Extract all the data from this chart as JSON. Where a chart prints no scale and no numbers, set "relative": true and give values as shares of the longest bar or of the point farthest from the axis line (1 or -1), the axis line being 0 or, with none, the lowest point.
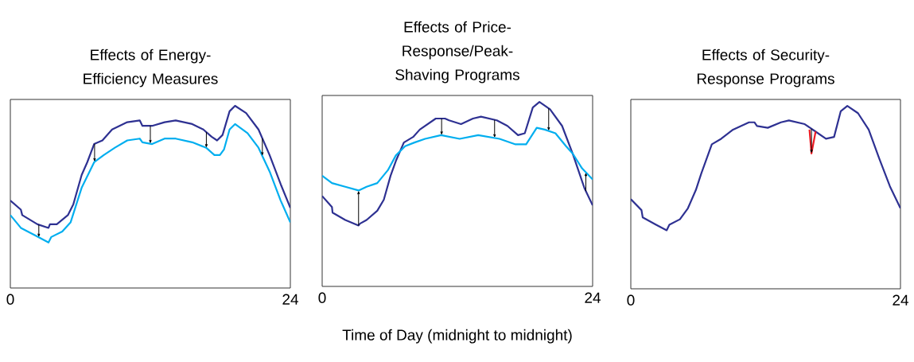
{
  "chart_data": [
    {
      "type": "line",
      "title": "Effects of Energy-Efficiency Measures",
      "relative": true,
      "xlim": [
        0,
        24
      ],
      "xticks": [
        0,
        24
      ],
      "series": [
        {
          "color": "#2e3192",
          "x": [
            0,
            0.9,
            1.02,
            2.32,
            3.27,
            3.39,
            3.98,
            4.93,
            5.4,
            6.11,
            6.59,
            7.18,
            7.89,
            8.72,
            10.02,
            11.09,
            11.32,
            12.15,
            13.22,
            14.17,
            15.59,
            16.54,
            17.25,
            17.72,
            18.19,
            18.79,
            19.26,
            20.21,
            21.27,
            22.22,
            23.17,
            24
          ],
          "values": [
            0.48,
            0.43,
            0.4,
            0.35,
            0.33,
            0.35,
            0.35,
            0.4,
            0.46,
            0.62,
            0.69,
            0.79,
            0.81,
            0.87,
            0.91,
            0.92,
            0.89,
            0.89,
            0.91,
            0.92,
            0.9,
            0.87,
            0.83,
            0.81,
            0.84,
            0.97,
            1.0,
            0.96,
            0.87,
            0.73,
            0.57,
            0.44
          ]
        },
        {
          "color": "#00aeef",
          "x": [
            0,
            0.9,
            2.08,
            3.27,
            3.51,
            4.45,
            5.16,
            6.11,
            7.18,
            8.01,
            8.96,
            10.02,
            11.09,
            11.32,
            12.15,
            13.22,
            14.17,
            15.59,
            16.78,
            17.49,
            17.96,
            18.31,
            18.79,
            19.26,
            20.33,
            21.27,
            22.22,
            23.17,
            24
          ],
          "values": [
            0.4,
            0.33,
            0.29,
            0.25,
            0.28,
            0.31,
            0.36,
            0.55,
            0.69,
            0.73,
            0.77,
            0.81,
            0.82,
            0.8,
            0.79,
            0.82,
            0.82,
            0.8,
            0.77,
            0.73,
            0.73,
            0.76,
            0.87,
            0.9,
            0.85,
            0.77,
            0.64,
            0.48,
            0.36
          ]
        }
      ]
    },
    {
      "type": "line",
      "title": "Effects of Price-Response/Peak-Shaving Programs",
      "xlabel": "Time of Day (midnight to midnight)",
      "relative": true,
      "xlim": [
        0,
        24
      ],
      "xticks": [
        0,
        24
      ],
      "series": [
        {
          "color": "#2e3192",
          "x": [
            0,
            0.87,
            0.92,
            2.05,
            3.23,
            3.35,
            3.94,
            4.89,
            5.47,
            6.07,
            6.54,
            7.25,
            8.07,
            8.66,
            10.08,
            10.9,
            11.26,
            12.32,
            13.38,
            14.09,
            15.5,
            16.44,
            17.38,
            17.98,
            18.69,
            19.28,
            20.22,
            21.29,
            22.23,
            23.29,
            24
          ],
          "values": [
            0.49,
            0.43,
            0.4,
            0.36,
            0.33,
            0.34,
            0.36,
            0.41,
            0.47,
            0.6,
            0.68,
            0.78,
            0.81,
            0.85,
            0.91,
            0.91,
            0.9,
            0.88,
            0.91,
            0.92,
            0.9,
            0.87,
            0.82,
            0.83,
            0.97,
            1.0,
            0.96,
            0.87,
            0.72,
            0.53,
            0.44
          ]
        },
        {
          "color": "#00aeef",
          "x": [
            0,
            0.87,
            2.05,
            3.23,
            3.94,
            4.89,
            5.83,
            6.54,
            7.36,
            8.19,
            9.13,
            10.55,
            12.2,
            13.85,
            15.74,
            17.16,
            18.1,
            19.04,
            19.75,
            20.7,
            21.64,
            22.23,
            23.06,
            24
          ],
          "values": [
            0.6,
            0.56,
            0.54,
            0.52,
            0.54,
            0.56,
            0.63,
            0.71,
            0.76,
            0.78,
            0.8,
            0.82,
            0.8,
            0.82,
            0.8,
            0.77,
            0.77,
            0.86,
            0.85,
            0.83,
            0.76,
            0.72,
            0.64,
            0.58
          ]
        }
      ]
    },
    {
      "type": "line",
      "title": "Effects of Security-Response Programs",
      "relative": true,
      "xlim": [
        0,
        24
      ],
      "xticks": [
        0,
        24
      ],
      "series": [
        {
          "color": "#2e3192",
          "x": [
            0,
            0.95,
            1.06,
            2.25,
            3.19,
            3.43,
            4.37,
            5.08,
            5.79,
            6.27,
            7.21,
            8.04,
            9.1,
            10.52,
            11,
            11.23,
            12.19,
            13.36,
            14.07,
            15.48,
            16.43,
            17.37,
            18.09,
            18.68,
            19.27,
            20.22,
            21.17,
            22.12,
            23.06,
            24
          ],
          "values": [
            0.49,
            0.43,
            0.39,
            0.35,
            0.32,
            0.35,
            0.38,
            0.44,
            0.54,
            0.63,
            0.79,
            0.82,
            0.87,
            0.91,
            0.91,
            0.89,
            0.88,
            0.91,
            0.92,
            0.9,
            0.86,
            0.82,
            0.83,
            0.97,
            1.0,
            0.96,
            0.87,
            0.71,
            0.56,
            0.44
          ]
        },
        {
          "color": "#ed1c24",
          "x": [
            15.9,
            16.08,
            16.45
          ],
          "values": [
            0.87,
            0.74,
            0.86
          ]
        }
      ]
    }
  ]
}
